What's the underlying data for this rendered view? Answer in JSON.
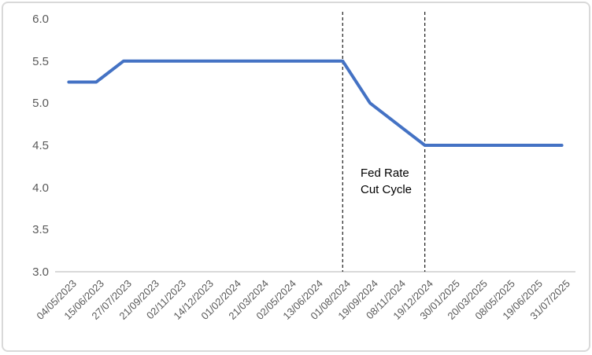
{
  "chart_data": {
    "type": "line",
    "title": "",
    "xlabel": "",
    "ylabel": "",
    "categories": [
      "04/05/2023",
      "15/06/2023",
      "27/07/2023",
      "21/09/2023",
      "02/11/2023",
      "14/12/2023",
      "01/02/2024",
      "21/03/2024",
      "02/05/2024",
      "13/06/2024",
      "01/08/2024",
      "19/09/2024",
      "08/11/2024",
      "19/12/2024",
      "30/01/2025",
      "20/03/2025",
      "08/05/2025",
      "19/06/2025",
      "31/07/2025"
    ],
    "values": [
      5.25,
      5.25,
      5.5,
      5.5,
      5.5,
      5.5,
      5.5,
      5.5,
      5.5,
      5.5,
      5.5,
      5.0,
      4.75,
      4.5,
      4.5,
      4.5,
      4.5,
      4.5,
      4.5
    ],
    "ylim": [
      3.0,
      6.0
    ],
    "y_ticks": [
      "6.0",
      "5.5",
      "5.0",
      "4.5",
      "4.0",
      "3.5",
      "3.0"
    ],
    "y_tick_values": [
      6.0,
      5.5,
      5.0,
      4.5,
      4.0,
      3.5,
      3.0
    ],
    "grid": false,
    "legend_position": "none",
    "x_label_rotation": -45,
    "line_color": "#4472C4",
    "axis_line_color": "#d9d9d9",
    "tick_label_color": "#595959",
    "annotation": {
      "text_lines": [
        "Fed Rate",
        "Cut Cycle"
      ],
      "dashed_line_category_indices": [
        10,
        13
      ],
      "dashed_line_categories": [
        "01/08/2024",
        "19/12/2024"
      ],
      "dash_color": "#1a1a1a"
    }
  }
}
